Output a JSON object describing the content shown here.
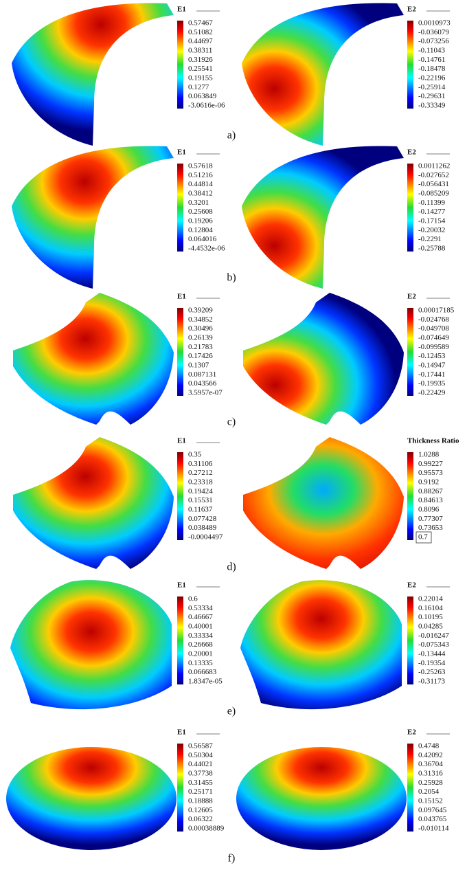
{
  "panels": [
    {
      "label": "a)",
      "plots": [
        {
          "title": "E1",
          "ticks": [
            "0.57467",
            "0.51082",
            "0.44697",
            "0.38311",
            "0.31926",
            "0.25541",
            "0.19155",
            "0.1277",
            "0.063849",
            "-3.0616e-06"
          ]
        },
        {
          "title": "E2",
          "ticks": [
            "0.0010973",
            "-0.036079",
            "-0.073256",
            "-0.11043",
            "-0.14761",
            "-0.18478",
            "-0.22196",
            "-0.25914",
            "-0.29631",
            "-0.33349"
          ]
        }
      ]
    },
    {
      "label": "b)",
      "plots": [
        {
          "title": "E1",
          "ticks": [
            "0.57618",
            "0.51216",
            "0.44814",
            "0.38412",
            "0.3201",
            "0.25608",
            "0.19206",
            "0.12804",
            "0.064016",
            "-4.4532e-06"
          ]
        },
        {
          "title": "E2",
          "ticks": [
            "0.0011262",
            "-0.027652",
            "-0.056431",
            "-0.085209",
            "-0.11399",
            "-0.14277",
            "-0.17154",
            "-0.20032",
            "-0.2291",
            "-0.25788"
          ]
        }
      ]
    },
    {
      "label": "c)",
      "plots": [
        {
          "title": "E1",
          "ticks": [
            "0.39209",
            "0.34852",
            "0.30496",
            "0.26139",
            "0.21783",
            "0.17426",
            "0.1307",
            "0.087131",
            "0.043566",
            "3.5957e-07"
          ]
        },
        {
          "title": "E2",
          "ticks": [
            "0.00017185",
            "-0.024768",
            "-0.049708",
            "-0.074649",
            "-0.099589",
            "-0.12453",
            "-0.14947",
            "-0.17441",
            "-0.19935",
            "-0.22429"
          ]
        }
      ]
    },
    {
      "label": "d)",
      "plots": [
        {
          "title": "E1",
          "ticks": [
            "0.35",
            "0.31106",
            "0.27212",
            "0.23318",
            "0.19424",
            "0.15531",
            "0.11637",
            "0.077428",
            "0.038489",
            "-0.0004497"
          ]
        },
        {
          "title": "Thickness Ratio",
          "ticks": [
            "1.0288",
            "0.99227",
            "0.95573",
            "0.9192",
            "0.88267",
            "0.84613",
            "0.8096",
            "0.77307",
            "0.73653",
            "0.7"
          ]
        }
      ]
    },
    {
      "label": "e)",
      "plots": [
        {
          "title": "E1",
          "ticks": [
            "0.6",
            "0.53334",
            "0.46667",
            "0.40001",
            "0.33334",
            "0.26668",
            "0.20001",
            "0.13335",
            "0.066683",
            "1.8347e-05"
          ]
        },
        {
          "title": "E2",
          "ticks": [
            "0.22014",
            "0.16104",
            "0.10195",
            "0.04285",
            "-0.016247",
            "-0.075343",
            "-0.13444",
            "-0.19354",
            "-0.25263",
            "-0.31173"
          ]
        }
      ]
    },
    {
      "label": "f)",
      "plots": [
        {
          "title": "E1",
          "ticks": [
            "0.56587",
            "0.50304",
            "0.44021",
            "0.37738",
            "0.31455",
            "0.25171",
            "0.18888",
            "0.12605",
            "0.06322",
            "0.00038889"
          ]
        },
        {
          "title": "E2",
          "ticks": [
            "0.4748",
            "0.42092",
            "0.36704",
            "0.31316",
            "0.25928",
            "0.2054",
            "0.15152",
            "0.097645",
            "0.043765",
            "-0.010114"
          ]
        }
      ]
    }
  ]
}
